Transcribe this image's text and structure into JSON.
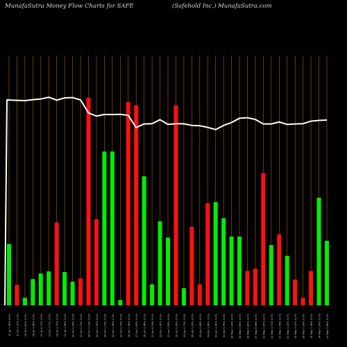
{
  "header": {
    "left": "MunafaSutra  Money Flow  Charts for SAFE",
    "right": "(Safehold Inc.) MunafaSutra.com"
  },
  "chart_data": {
    "type": "bar",
    "title": "",
    "xlabel": "",
    "ylabel": "",
    "ylim": [
      0,
      100
    ],
    "line_ylim": [
      0,
      100
    ],
    "grid": "vertical lines",
    "colors": {
      "up": "#00ee00",
      "down": "#ff1111",
      "line": "#ffffff",
      "grid": "#c87000",
      "background": "#000000"
    },
    "categories": [
      "11 Jul 7.06% 4.0%",
      "10 Jul 1.37% 1.2%",
      "09 Jul 0.51% 0.0%",
      "08 Jul 7.68% 0.0%",
      "07 Jul 6.71% 0.0%",
      "03 Jul 3.71% 0.0%",
      "02 Jul 1.07% 0.0%",
      "01 Jul 1.55% 0.0%",
      "30 Jun 0.54% 0.0%",
      "27 Jun 0.73% 0.0%",
      "26 Jun 7.13% 0.0%",
      "25 Jun 2.20% 0.0%",
      "24 Jun 1.73% 0.0%",
      "23 Jun 1.38% 1.2%",
      "20 Jun 0.73% 0.0%",
      "18 Jun 7.36% 0.0%",
      "17 Jun 2.65% 0.0%",
      "16 Jun 2.28% 0.0%",
      "13 Jun 6.74% 0.0%",
      "12 Jun 1.00% 0.0%",
      "11 Jun 3.28% 0.0%",
      "10 Jun 2.26% 0.0%",
      "09 Jun 0.73% 0.0%",
      "06 Jun 1.25% 0.0%",
      "05 Jun 2.08% 0.0%",
      "04 Jun 1.96% 0.0%",
      "03 Jun 3.00% 0.0%",
      "02 Jun 6.76% 0.0%",
      "30 May 1.09% 0.0%",
      "29 May 2.60% 0.0%",
      "28 May 0.81% 0.0%",
      "27 May 6.58% 0.0%",
      "23 May 2.57% 0.0%",
      "22 May 2.71% 0.0%",
      "21 May 1.78% 0.0%",
      "20 May 2.23% 0.0%",
      "19 May 3.10% 0.0%",
      "16 May 0.09% 0.0%",
      "15 May 1.36% 0.0%",
      "14 May 0.00% 0.0%",
      "13 May 0.80% 0.0%"
    ],
    "bar_colors": [
      "green",
      "red",
      "green",
      "green",
      "green",
      "green",
      "red",
      "green",
      "green",
      "red",
      "red",
      "red",
      "green",
      "green",
      "green",
      "red",
      "red",
      "green",
      "green",
      "green",
      "green",
      "red",
      "green",
      "red",
      "red",
      "red",
      "green",
      "green",
      "green",
      "green",
      "red",
      "red",
      "red",
      "green",
      "red",
      "green",
      "red",
      "red",
      "red",
      "green",
      "green"
    ],
    "values": [
      28.5,
      9.5,
      3.5,
      12.2,
      14.8,
      15.8,
      38.5,
      15.5,
      11.0,
      12.5,
      96.5,
      40.0,
      71.5,
      71.5,
      2.5,
      94.5,
      93.0,
      60.0,
      9.8,
      39.0,
      31.5,
      93.0,
      8.0,
      36.5,
      9.8,
      47.5,
      48.0,
      40.5,
      32.0,
      32.0,
      16.0,
      17.0,
      61.5,
      28.0,
      33.0,
      23.0,
      12.0,
      3.5,
      16.0,
      50.0,
      30.0
    ],
    "line_values": [
      100,
      99.5,
      99.2,
      100.3,
      101.2,
      103.3,
      99.7,
      102.5,
      102.9,
      100,
      84.1,
      80.3,
      82.2,
      82.2,
      82.4,
      81.2,
      66.2,
      70.7,
      71,
      75.9,
      70.1,
      71,
      70.9,
      68.9,
      68.5,
      66.5,
      63.8,
      68.9,
      72.4,
      77.6,
      78.3,
      76.2,
      70.7,
      70.7,
      73.1,
      70.1,
      70.7,
      71,
      74.1,
      75,
      75.4
    ]
  }
}
